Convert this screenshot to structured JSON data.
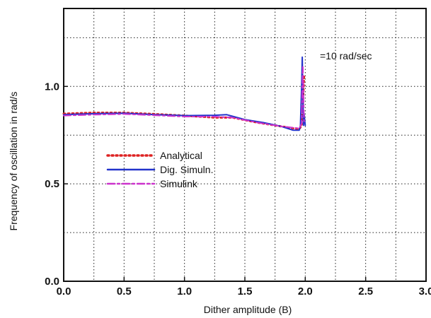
{
  "chart_data": {
    "type": "line",
    "title": "",
    "xlabel": "Dither amplitude (B)",
    "ylabel": "Frequency of oscillation in rad/s",
    "xlim": [
      0.0,
      3.0
    ],
    "ylim": [
      0.0,
      1.4
    ],
    "x_ticks": [
      0.0,
      0.5,
      1.0,
      1.5,
      2.0,
      2.5,
      3.0
    ],
    "x_tick_labels": [
      "0.0",
      "0.5",
      "1.0",
      "1.5",
      "2.0",
      "2.5",
      "3.0"
    ],
    "y_ticks": [
      0.0,
      0.5,
      1.0
    ],
    "y_tick_labels": [
      "0.0",
      "0.5",
      "1.0"
    ],
    "x_grid_lines": [
      0.25,
      0.5,
      0.75,
      1.0,
      1.25,
      1.5,
      1.75,
      2.0,
      2.25,
      2.5,
      2.75
    ],
    "y_grid_lines": [
      0.25,
      0.5,
      0.75,
      1.0,
      1.25
    ],
    "grid": true,
    "legend_position": "left-center",
    "annotation": "=10 rad/sec",
    "series": [
      {
        "name": "Analytical",
        "style": "dotted",
        "color": "#dd2222",
        "x": [
          0.0,
          0.25,
          0.5,
          0.75,
          1.0,
          1.25,
          1.4,
          1.6,
          1.8,
          1.95,
          1.97,
          1.98,
          1.99
        ],
        "y": [
          0.86,
          0.865,
          0.865,
          0.858,
          0.85,
          0.84,
          0.84,
          0.815,
          0.795,
          0.78,
          0.8,
          0.9,
          1.05
        ]
      },
      {
        "name": "Dig. Simuln.",
        "style": "solid",
        "color": "#2233cc",
        "x": [
          0.0,
          0.25,
          0.5,
          0.75,
          1.0,
          1.25,
          1.35,
          1.5,
          1.65,
          1.8,
          1.9,
          1.95,
          1.96,
          1.97,
          1.975,
          1.98,
          1.985,
          1.99,
          2.0
        ],
        "y": [
          0.855,
          0.86,
          0.862,
          0.855,
          0.85,
          0.852,
          0.855,
          0.83,
          0.815,
          0.795,
          0.775,
          0.775,
          0.8,
          1.0,
          1.15,
          0.95,
          0.8,
          0.86,
          0.8
        ]
      },
      {
        "name": "Simulink",
        "style": "dashdot",
        "color": "#cc33cc",
        "x": [
          0.0,
          0.25,
          0.5,
          0.75,
          1.0,
          1.25,
          1.4,
          1.6,
          1.8,
          1.95,
          1.97,
          1.975,
          1.98,
          1.99
        ],
        "y": [
          0.85,
          0.855,
          0.858,
          0.852,
          0.845,
          0.845,
          0.84,
          0.815,
          0.795,
          0.785,
          0.81,
          1.0,
          1.1,
          0.82
        ]
      }
    ]
  }
}
